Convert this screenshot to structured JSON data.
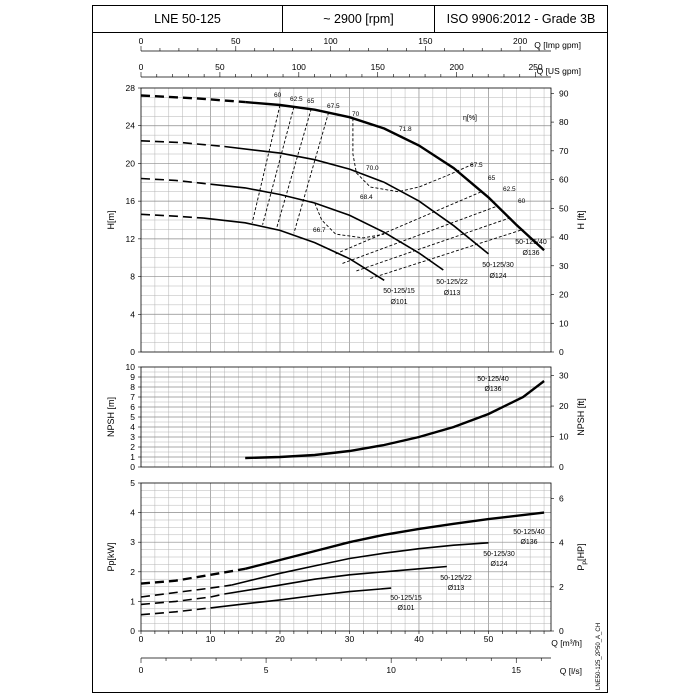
{
  "header": {
    "model": "LNE 50-125",
    "speed": "~ 2900 [rpm]",
    "standard": "ISO 9906:2012 - Grade 3B"
  },
  "chart_data": {
    "type": "line",
    "title": "LNE 50-125",
    "top_axes": [
      {
        "label": "Q [Imp gpm]",
        "range": [
          0,
          230
        ],
        "ticks": [
          0,
          50,
          100,
          150,
          200
        ]
      },
      {
        "label": "Q [US gpm]",
        "range": [
          0,
          265
        ],
        "ticks": [
          0,
          50,
          100,
          150,
          200,
          250
        ]
      }
    ],
    "bottom_axes": [
      {
        "label": "Q [m³/h]",
        "range": [
          0,
          59
        ],
        "ticks": [
          0,
          10,
          20,
          30,
          40,
          50
        ]
      },
      {
        "label": "Q [l/s]",
        "range": [
          0,
          16.4
        ],
        "ticks": [
          0,
          5,
          10,
          15
        ]
      }
    ],
    "panels": [
      {
        "name": "head",
        "ylabel": "H[m]",
        "ylim": [
          0,
          28
        ],
        "yticks": [
          0,
          4,
          8,
          12,
          16,
          20,
          24,
          28
        ],
        "ylabel_right": "H [ft]",
        "yticks_right": [
          0,
          10,
          20,
          30,
          40,
          50,
          60,
          70,
          80,
          90
        ],
        "efficiency_label": "η[%]",
        "series": [
          {
            "name": "50-125/40",
            "diameter": "Ø136",
            "dashed": [
              [
                0,
                27.2
              ],
              [
                8,
                26.9
              ],
              [
                15,
                26.5
              ]
            ],
            "solid": [
              [
                15,
                26.5
              ],
              [
                20,
                26.2
              ],
              [
                25,
                25.7
              ],
              [
                30,
                24.9
              ],
              [
                35,
                23.7
              ],
              [
                40,
                21.9
              ],
              [
                45,
                19.5
              ],
              [
                50,
                16.4
              ],
              [
                54,
                13.5
              ],
              [
                58,
                10.8
              ]
            ]
          },
          {
            "name": "50-125/30",
            "diameter": "Ø124",
            "dashed": [
              [
                0,
                22.4
              ],
              [
                6,
                22.2
              ],
              [
                12,
                21.8
              ]
            ],
            "solid": [
              [
                12,
                21.8
              ],
              [
                20,
                21.1
              ],
              [
                25,
                20.4
              ],
              [
                30,
                19.4
              ],
              [
                35,
                18.0
              ],
              [
                40,
                16.0
              ],
              [
                45,
                13.4
              ],
              [
                50,
                10.4
              ]
            ]
          },
          {
            "name": "50-125/22",
            "diameter": "Ø113",
            "dashed": [
              [
                0,
                18.4
              ],
              [
                5,
                18.2
              ],
              [
                10,
                17.8
              ]
            ],
            "solid": [
              [
                10,
                17.8
              ],
              [
                15,
                17.4
              ],
              [
                20,
                16.7
              ],
              [
                25,
                15.8
              ],
              [
                30,
                14.5
              ],
              [
                35,
                12.7
              ],
              [
                40,
                10.5
              ],
              [
                43.5,
                8.7
              ]
            ]
          },
          {
            "name": "50-125/15",
            "diameter": "Ø101",
            "dashed": [
              [
                0,
                14.6
              ],
              [
                5,
                14.4
              ],
              [
                9,
                14.2
              ]
            ],
            "solid": [
              [
                9,
                14.2
              ],
              [
                15,
                13.7
              ],
              [
                20,
                12.9
              ],
              [
                25,
                11.6
              ],
              [
                30,
                9.9
              ],
              [
                35,
                7.6
              ]
            ]
          }
        ],
        "efficiency_contours": [
          {
            "label": "60",
            "points": [
              [
                20,
                26.2
              ],
              [
                16,
                13.7
              ]
            ]
          },
          {
            "label": "62.5",
            "points": [
              [
                22,
                26.0
              ],
              [
                17.5,
                13.5
              ]
            ]
          },
          {
            "label": "65",
            "points": [
              [
                24.5,
                25.8
              ],
              [
                19.5,
                13.1
              ]
            ]
          },
          {
            "label": "67.5",
            "points": [
              [
                27,
                25.4
              ],
              [
                22,
                12.6
              ]
            ]
          },
          {
            "label": "70",
            "points": [
              [
                30.5,
                24.8
              ],
              [
                30.5,
                21.0
              ],
              [
                31,
                19.0
              ],
              [
                33,
                17.5
              ],
              [
                37,
                17.0
              ],
              [
                40,
                17.5
              ],
              [
                44,
                18.7
              ],
              [
                48,
                20.0
              ]
            ]
          },
          {
            "label": "70.0",
            "points": []
          },
          {
            "label": "71.8",
            "points": []
          },
          {
            "label": "68.4",
            "points": [
              [
                25,
                15.8
              ],
              [
                26,
                14.0
              ],
              [
                28,
                12.5
              ],
              [
                32,
                12.1
              ],
              [
                35,
                12.5
              ]
            ]
          },
          {
            "label": "66.7",
            "points": []
          },
          {
            "label": "67.5",
            "points": [
              [
                28,
                10.4
              ],
              [
                49,
                17.0
              ]
            ]
          },
          {
            "label": "65",
            "points": [
              [
                29,
                9.4
              ],
              [
                51,
                15.4
              ]
            ]
          },
          {
            "label": "62.5",
            "points": [
              [
                31,
                8.6
              ],
              [
                53,
                14.2
              ]
            ]
          },
          {
            "label": "60",
            "points": [
              [
                33,
                7.8
              ],
              [
                55,
                13.0
              ]
            ]
          }
        ]
      },
      {
        "name": "npsh",
        "ylabel": "NPSH [m]",
        "ylim": [
          0,
          10
        ],
        "yticks": [
          0,
          1,
          2,
          3,
          4,
          5,
          6,
          7,
          8,
          9,
          10
        ],
        "ylabel_right": "NPSH [ft]",
        "yticks_right": [
          0,
          10,
          20,
          30
        ],
        "series": [
          {
            "name": "50-125/40",
            "diameter": "Ø136",
            "solid": [
              [
                15,
                0.9
              ],
              [
                20,
                1.0
              ],
              [
                25,
                1.2
              ],
              [
                30,
                1.6
              ],
              [
                35,
                2.2
              ],
              [
                40,
                3.0
              ],
              [
                45,
                4.0
              ],
              [
                50,
                5.3
              ],
              [
                55,
                7.0
              ],
              [
                58,
                8.6
              ]
            ]
          }
        ]
      },
      {
        "name": "power",
        "ylabel": "Pp[kW]",
        "ylim": [
          0,
          5
        ],
        "yticks": [
          0,
          1,
          2,
          3,
          4,
          5
        ],
        "ylabel_right": "P",
        "ylabel_right_sub": "p",
        "ylabel_right_unit": "[HP]",
        "yticks_right": [
          0,
          2,
          4,
          6
        ],
        "series": [
          {
            "name": "50-125/40",
            "diameter": "Ø136",
            "dashed": [
              [
                0,
                1.6
              ],
              [
                5,
                1.7
              ],
              [
                10,
                1.9
              ],
              [
                15,
                2.1
              ]
            ],
            "solid": [
              [
                15,
                2.1
              ],
              [
                20,
                2.4
              ],
              [
                25,
                2.7
              ],
              [
                30,
                3.0
              ],
              [
                35,
                3.25
              ],
              [
                40,
                3.45
              ],
              [
                45,
                3.62
              ],
              [
                50,
                3.78
              ],
              [
                58,
                4.0
              ]
            ]
          },
          {
            "name": "50-125/30",
            "diameter": "Ø124",
            "dashed": [
              [
                0,
                1.15
              ],
              [
                5,
                1.3
              ],
              [
                10,
                1.45
              ],
              [
                13,
                1.55
              ]
            ],
            "solid": [
              [
                13,
                1.55
              ],
              [
                20,
                1.95
              ],
              [
                25,
                2.2
              ],
              [
                30,
                2.45
              ],
              [
                35,
                2.63
              ],
              [
                40,
                2.78
              ],
              [
                45,
                2.9
              ],
              [
                50,
                2.98
              ]
            ]
          },
          {
            "name": "50-125/22",
            "diameter": "Ø113",
            "dashed": [
              [
                0,
                0.9
              ],
              [
                5,
                1.0
              ],
              [
                10,
                1.15
              ],
              [
                12,
                1.25
              ]
            ],
            "solid": [
              [
                12,
                1.25
              ],
              [
                20,
                1.55
              ],
              [
                25,
                1.75
              ],
              [
                30,
                1.9
              ],
              [
                35,
                2.0
              ],
              [
                40,
                2.1
              ],
              [
                44,
                2.18
              ]
            ]
          },
          {
            "name": "50-125/15",
            "diameter": "Ø101",
            "dashed": [
              [
                0,
                0.55
              ],
              [
                5,
                0.65
              ],
              [
                10,
                0.78
              ]
            ],
            "solid": [
              [
                10,
                0.78
              ],
              [
                15,
                0.92
              ],
              [
                20,
                1.05
              ],
              [
                25,
                1.2
              ],
              [
                30,
                1.33
              ],
              [
                36,
                1.45
              ]
            ]
          }
        ]
      }
    ],
    "footer_code": "LNE50-125_2P50_A_CH"
  }
}
